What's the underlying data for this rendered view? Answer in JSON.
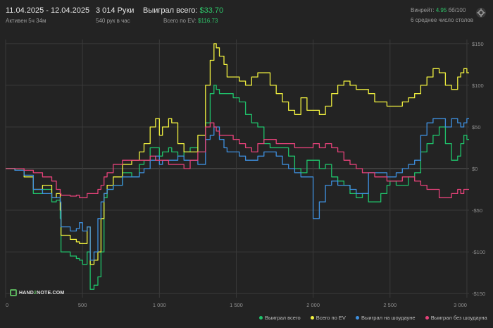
{
  "header": {
    "date_range": "11.04.2025 - 12.04.2025",
    "active": "Активен 5ч 34м",
    "hands": "3 014 Руки",
    "rate": "540 рук в час",
    "won_label": "Выиграл всего:",
    "won_value": "$33.70",
    "ev_label": "Всего по EV:",
    "ev_value": "$116.73",
    "winrate_label": "Винрейт:",
    "winrate_value": "4.95",
    "winrate_unit": "бб/100",
    "tables": "6 среднее число столов"
  },
  "logo": {
    "a": "HAND",
    "b": "2",
    "c": "NOTE.COM"
  },
  "colors": {
    "background": "#232323",
    "grid": "#3a3a3a",
    "axis_text": "#8e8e8e",
    "green": "#1fc36b",
    "yellow": "#f1f13f",
    "blue": "#3e8fde",
    "pink": "#e6427a"
  },
  "chart_data": {
    "type": "line",
    "x_ticks": [
      0,
      500,
      1000,
      1500,
      2000,
      2500,
      3000
    ],
    "x_tick_labels": [
      "0",
      "500",
      "1 000",
      "1 500",
      "2 000",
      "2 500",
      "3 000"
    ],
    "y_ticks": [
      150,
      100,
      50,
      0,
      -50,
      -100,
      -150
    ],
    "y_tick_labels": [
      "$150",
      "$100",
      "$50",
      "$0",
      "-$50",
      "-$100",
      "-$150"
    ],
    "xlim": [
      0,
      3014
    ],
    "ylim": [
      -155,
      155
    ],
    "grid": true,
    "legend_position": "bottom-right",
    "series": [
      {
        "name": "Выиграл всего",
        "color": "#1fc36b",
        "x": [
          0,
          60,
          120,
          180,
          240,
          300,
          330,
          355,
          360,
          420,
          460,
          480,
          500,
          530,
          550,
          575,
          600,
          620,
          640,
          660,
          700,
          760,
          820,
          870,
          900,
          940,
          975,
          1000,
          1020,
          1060,
          1080,
          1120,
          1160,
          1200,
          1250,
          1300,
          1330,
          1355,
          1370,
          1390,
          1420,
          1440,
          1480,
          1520,
          1560,
          1600,
          1640,
          1680,
          1720,
          1760,
          1800,
          1840,
          1880,
          1920,
          1960,
          2000,
          2040,
          2080,
          2120,
          2160,
          2200,
          2240,
          2280,
          2320,
          2360,
          2400,
          2440,
          2480,
          2500,
          2540,
          2580,
          2620,
          2660,
          2700,
          2740,
          2780,
          2820,
          2860,
          2900,
          2940,
          2960,
          2980,
          3000
        ],
        "y": [
          0,
          -2,
          -10,
          -30,
          -25,
          -40,
          -38,
          -60,
          -100,
          -105,
          -108,
          -110,
          -115,
          -100,
          -145,
          -140,
          -130,
          -100,
          -35,
          -25,
          -20,
          -5,
          -10,
          5,
          10,
          25,
          25,
          15,
          20,
          25,
          20,
          15,
          20,
          25,
          20,
          55,
          90,
          100,
          95,
          90,
          90,
          90,
          85,
          80,
          65,
          55,
          50,
          30,
          25,
          25,
          25,
          15,
          0,
          -5,
          10,
          10,
          0,
          5,
          -10,
          -15,
          -20,
          -30,
          -35,
          -30,
          -40,
          -40,
          -30,
          -20,
          -15,
          -20,
          -20,
          -10,
          -5,
          20,
          30,
          40,
          50,
          30,
          10,
          15,
          30,
          40,
          35
        ]
      },
      {
        "name": "Всего по EV",
        "color": "#f1f13f",
        "x": [
          0,
          60,
          120,
          180,
          240,
          300,
          330,
          355,
          360,
          420,
          460,
          480,
          500,
          530,
          550,
          575,
          600,
          620,
          640,
          660,
          700,
          760,
          820,
          870,
          900,
          940,
          975,
          1000,
          1020,
          1060,
          1080,
          1120,
          1160,
          1200,
          1250,
          1300,
          1330,
          1355,
          1370,
          1390,
          1420,
          1440,
          1480,
          1520,
          1560,
          1600,
          1640,
          1680,
          1720,
          1760,
          1800,
          1840,
          1880,
          1920,
          1960,
          2000,
          2040,
          2080,
          2120,
          2160,
          2200,
          2240,
          2280,
          2320,
          2360,
          2400,
          2440,
          2480,
          2500,
          2540,
          2580,
          2620,
          2660,
          2700,
          2740,
          2780,
          2820,
          2860,
          2900,
          2940,
          2960,
          2980,
          3000
        ],
        "y": [
          0,
          -2,
          -10,
          -25,
          -20,
          -35,
          -30,
          -50,
          -80,
          -85,
          -88,
          -90,
          -90,
          -70,
          -115,
          -110,
          -100,
          -60,
          -30,
          -20,
          -10,
          5,
          10,
          20,
          30,
          50,
          60,
          40,
          50,
          60,
          55,
          30,
          20,
          20,
          40,
          100,
          130,
          150,
          145,
          135,
          125,
          110,
          110,
          105,
          100,
          110,
          115,
          115,
          100,
          90,
          80,
          70,
          65,
          85,
          70,
          70,
          65,
          75,
          90,
          100,
          105,
          100,
          95,
          95,
          90,
          80,
          80,
          75,
          75,
          75,
          80,
          85,
          90,
          100,
          110,
          120,
          115,
          100,
          95,
          110,
          115,
          120,
          115
        ]
      },
      {
        "name": "Выиграл на шоудауне",
        "color": "#3e8fde",
        "x": [
          0,
          60,
          120,
          180,
          240,
          300,
          330,
          355,
          360,
          420,
          460,
          480,
          500,
          530,
          550,
          575,
          600,
          620,
          640,
          660,
          700,
          760,
          820,
          870,
          900,
          940,
          975,
          1000,
          1020,
          1060,
          1080,
          1120,
          1160,
          1200,
          1250,
          1300,
          1330,
          1355,
          1370,
          1390,
          1420,
          1440,
          1480,
          1520,
          1560,
          1600,
          1640,
          1680,
          1720,
          1760,
          1800,
          1840,
          1880,
          1920,
          1960,
          2000,
          2040,
          2080,
          2120,
          2160,
          2200,
          2240,
          2280,
          2320,
          2360,
          2400,
          2440,
          2480,
          2500,
          2540,
          2580,
          2620,
          2660,
          2700,
          2740,
          2780,
          2820,
          2860,
          2900,
          2940,
          2960,
          2980,
          3000
        ],
        "y": [
          0,
          -2,
          -8,
          -25,
          -30,
          -35,
          -35,
          -40,
          -70,
          -75,
          -72,
          -65,
          -75,
          -70,
          -110,
          -100,
          -60,
          -40,
          -30,
          -25,
          -20,
          -10,
          -10,
          -5,
          0,
          10,
          15,
          5,
          10,
          10,
          10,
          15,
          10,
          10,
          5,
          35,
          40,
          50,
          50,
          35,
          25,
          20,
          20,
          15,
          10,
          10,
          15,
          20,
          20,
          15,
          5,
          0,
          -5,
          -10,
          -10,
          -60,
          -40,
          -20,
          -15,
          -20,
          -20,
          -25,
          -30,
          -30,
          -5,
          -5,
          -5,
          -10,
          -10,
          -5,
          0,
          5,
          10,
          40,
          55,
          60,
          60,
          50,
          60,
          55,
          50,
          55,
          60
        ]
      },
      {
        "name": "Выиграл без шоудауна",
        "color": "#e6427a",
        "x": [
          0,
          60,
          120,
          180,
          240,
          300,
          330,
          355,
          360,
          420,
          460,
          480,
          500,
          530,
          550,
          575,
          600,
          620,
          640,
          660,
          700,
          760,
          820,
          870,
          900,
          940,
          975,
          1000,
          1020,
          1060,
          1080,
          1120,
          1160,
          1200,
          1250,
          1300,
          1330,
          1355,
          1370,
          1390,
          1420,
          1440,
          1480,
          1520,
          1560,
          1600,
          1640,
          1680,
          1720,
          1760,
          1800,
          1840,
          1880,
          1920,
          1960,
          2000,
          2040,
          2080,
          2120,
          2160,
          2200,
          2240,
          2280,
          2320,
          2360,
          2400,
          2440,
          2480,
          2500,
          2540,
          2580,
          2620,
          2660,
          2700,
          2740,
          2780,
          2820,
          2860,
          2900,
          2940,
          2960,
          2980,
          3000
        ],
        "y": [
          0,
          0,
          -2,
          -5,
          -10,
          -15,
          -25,
          -30,
          -32,
          -33,
          -32,
          -35,
          -35,
          -30,
          -30,
          -30,
          -25,
          -20,
          -10,
          -5,
          5,
          10,
          10,
          10,
          10,
          15,
          10,
          10,
          10,
          5,
          5,
          5,
          0,
          10,
          20,
          50,
          55,
          50,
          45,
          40,
          40,
          40,
          35,
          30,
          25,
          20,
          30,
          35,
          35,
          30,
          30,
          30,
          25,
          25,
          25,
          30,
          25,
          30,
          25,
          20,
          10,
          5,
          0,
          -5,
          -5,
          -10,
          -10,
          -15,
          -15,
          -15,
          -10,
          -10,
          -15,
          -20,
          -25,
          -25,
          -35,
          -35,
          -30,
          -25,
          -30,
          -25,
          -25
        ]
      }
    ]
  }
}
